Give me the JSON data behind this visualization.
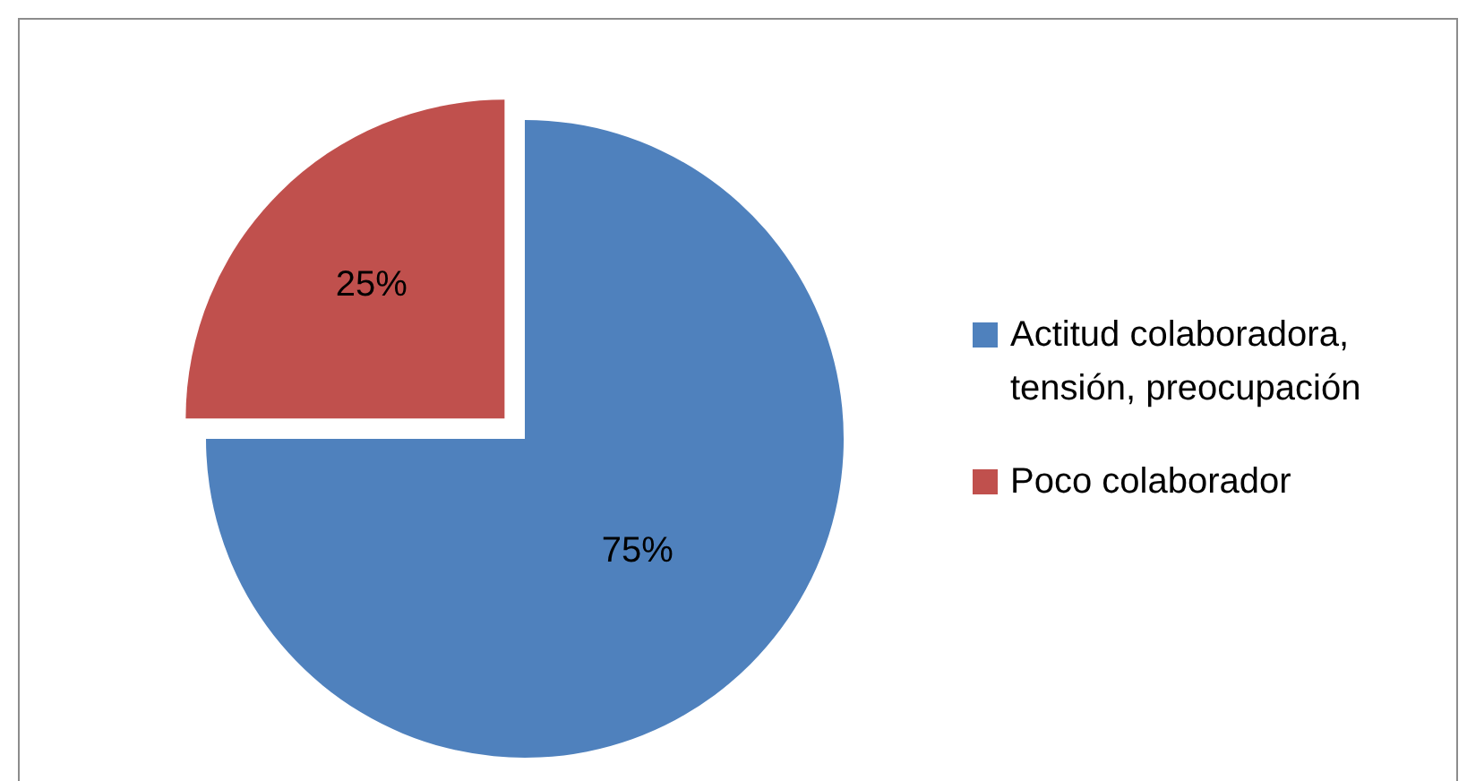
{
  "chart_data": {
    "type": "pie",
    "categories": [
      "Actitud colaboradora, tensión, preocupación",
      "Poco colaborador"
    ],
    "values": [
      75,
      25
    ],
    "colors": [
      "#4f81bd",
      "#c0504d"
    ],
    "value_labels": [
      "75%",
      "25%"
    ],
    "legend": "right"
  }
}
